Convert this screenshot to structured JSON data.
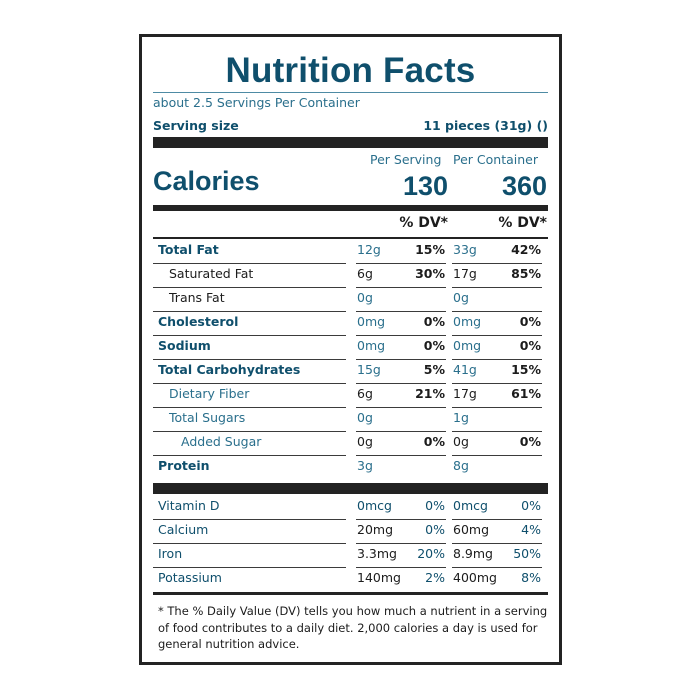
{
  "label": {
    "title": "Nutrition Facts",
    "servings_per_container": "about 2.5 Servings Per Container",
    "serving_size_label": "Serving size",
    "serving_size_value": "11 pieces (31g) ()",
    "per_serving_header": "Per Serving",
    "per_container_header": "Per Container",
    "calories_label": "Calories",
    "calories_per_serving": "130",
    "calories_per_container": "360",
    "dv_header": "% DV*"
  },
  "nutrients": [
    {
      "name": "Total Fat",
      "serving_amount": "12g",
      "serving_dv": "15%",
      "container_amount": "33g",
      "container_dv": "42%"
    },
    {
      "name": "Saturated Fat",
      "serving_amount": "6g",
      "serving_dv": "30%",
      "container_amount": "17g",
      "container_dv": "85%"
    },
    {
      "name": "Trans Fat",
      "serving_amount": "0g",
      "serving_dv": "",
      "container_amount": "0g",
      "container_dv": ""
    },
    {
      "name": "Cholesterol",
      "serving_amount": "0mg",
      "serving_dv": "0%",
      "container_amount": "0mg",
      "container_dv": "0%"
    },
    {
      "name": "Sodium",
      "serving_amount": "0mg",
      "serving_dv": "0%",
      "container_amount": "0mg",
      "container_dv": "0%"
    },
    {
      "name": "Total Carbohydrates",
      "serving_amount": "15g",
      "serving_dv": "5%",
      "container_amount": "41g",
      "container_dv": "15%"
    },
    {
      "name": "Dietary Fiber",
      "serving_amount": "6g",
      "serving_dv": "21%",
      "container_amount": "17g",
      "container_dv": "61%"
    },
    {
      "name": "Total Sugars",
      "serving_amount": "0g",
      "serving_dv": "",
      "container_amount": "1g",
      "container_dv": ""
    },
    {
      "name": "Added Sugar",
      "serving_amount": "0g",
      "serving_dv": "0%",
      "container_amount": "0g",
      "container_dv": "0%"
    },
    {
      "name": "Protein",
      "serving_amount": "3g",
      "serving_dv": "",
      "container_amount": "8g",
      "container_dv": ""
    }
  ],
  "vitamins": [
    {
      "name": "Vitamin D",
      "serving_amount": "0mcg",
      "serving_dv": "0%",
      "container_amount": "0mcg",
      "container_dv": "0%"
    },
    {
      "name": "Calcium",
      "serving_amount": "20mg",
      "serving_dv": "0%",
      "container_amount": "60mg",
      "container_dv": "4%"
    },
    {
      "name": "Iron",
      "serving_amount": "3.3mg",
      "serving_dv": "20%",
      "container_amount": "8.9mg",
      "container_dv": "50%"
    },
    {
      "name": "Potassium",
      "serving_amount": "140mg",
      "serving_dv": "2%",
      "container_amount": "400mg",
      "container_dv": "8%"
    }
  ],
  "footnote": "* The % Daily Value (DV) tells you how much a nutrient in a serving of food contributes to a daily diet. 2,000 calories a day is used for general nutrition advice."
}
